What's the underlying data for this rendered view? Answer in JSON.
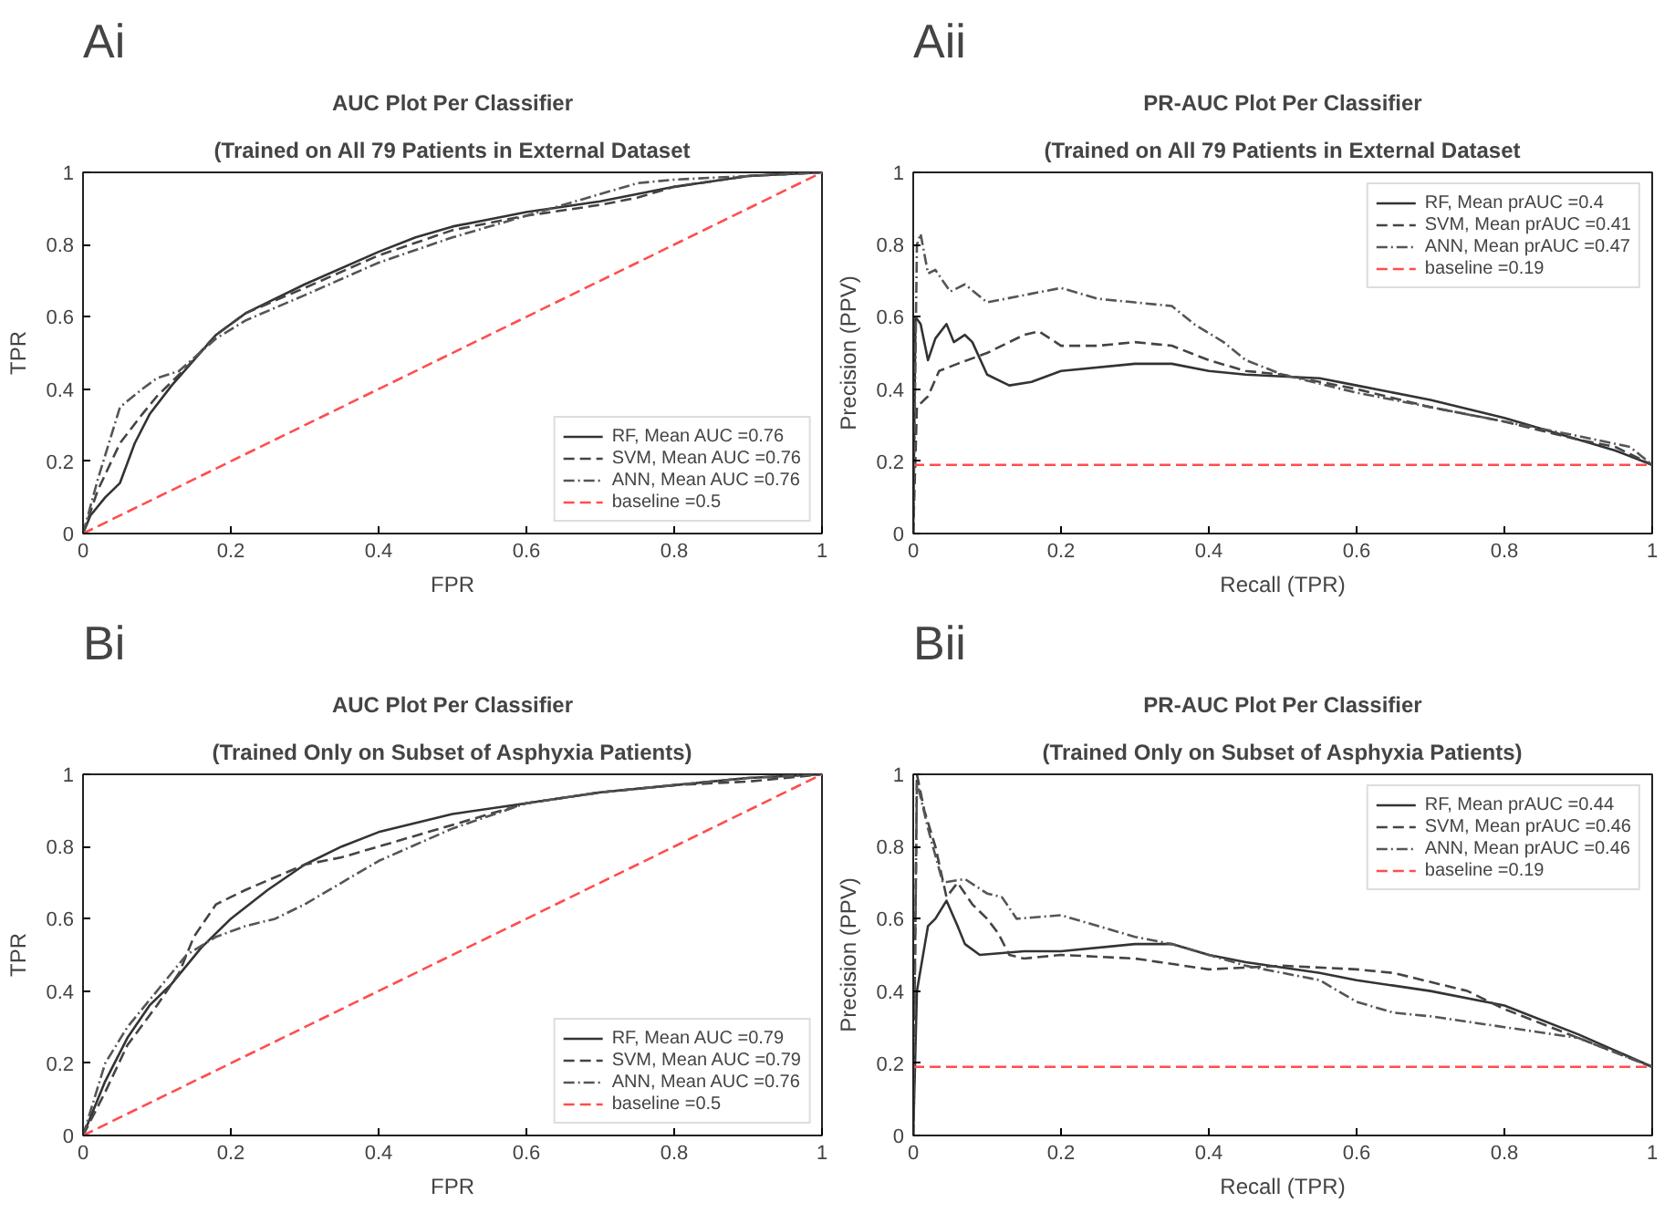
{
  "chart_data": [
    {
      "type": "line",
      "title": "AUC Plot Per Classifier",
      "subtitle": "(Trained on All 79 Patients in External Dataset",
      "xlabel": "FPR",
      "ylabel": "TPR",
      "annotations": [
        "Ai"
      ],
      "xlim": [
        0,
        1
      ],
      "ylim": [
        0,
        1
      ],
      "xticks": [
        0,
        0.2,
        0.4,
        0.6,
        0.8,
        1
      ],
      "yticks": [
        0,
        0.2,
        0.4,
        0.6,
        0.8,
        1
      ],
      "legend": "bottom right",
      "series": [
        {
          "name": "RF, Mean AUC =0.76",
          "color": "#333333",
          "line_style": "solid",
          "x": [
            0,
            0.01,
            0.03,
            0.05,
            0.07,
            0.09,
            0.12,
            0.15,
            0.18,
            0.22,
            0.3,
            0.4,
            0.45,
            0.5,
            0.55,
            0.6,
            0.7,
            0.8,
            0.9,
            1
          ],
          "values": [
            0,
            0.05,
            0.1,
            0.14,
            0.25,
            0.33,
            0.41,
            0.48,
            0.55,
            0.61,
            0.69,
            0.78,
            0.82,
            0.85,
            0.87,
            0.89,
            0.92,
            0.96,
            0.99,
            1
          ]
        },
        {
          "name": "SVM, Mean AUC =0.76",
          "color": "#444444",
          "line_style": "dashed",
          "x": [
            0,
            0.02,
            0.05,
            0.08,
            0.1,
            0.14,
            0.18,
            0.22,
            0.3,
            0.4,
            0.5,
            0.6,
            0.7,
            0.75,
            0.8,
            0.9,
            1
          ],
          "values": [
            0,
            0.12,
            0.25,
            0.33,
            0.38,
            0.46,
            0.55,
            0.61,
            0.68,
            0.77,
            0.84,
            0.88,
            0.91,
            0.93,
            0.96,
            0.99,
            1
          ]
        },
        {
          "name": "ANN, Mean AUC =0.76",
          "color": "#555555",
          "line_style": "dashdot",
          "x": [
            0,
            0.02,
            0.05,
            0.08,
            0.1,
            0.13,
            0.18,
            0.22,
            0.3,
            0.4,
            0.5,
            0.6,
            0.7,
            0.75,
            0.8,
            0.9,
            1
          ],
          "values": [
            0,
            0.15,
            0.35,
            0.4,
            0.43,
            0.45,
            0.54,
            0.59,
            0.66,
            0.75,
            0.82,
            0.88,
            0.94,
            0.97,
            0.98,
            0.99,
            1
          ]
        },
        {
          "name": "baseline =0.5",
          "color": "#ff4d4d",
          "line_style": "dashed",
          "x": [
            0,
            1
          ],
          "values": [
            0,
            1
          ]
        }
      ]
    },
    {
      "type": "line",
      "title": "PR-AUC Plot Per Classifier",
      "subtitle": "(Trained on All 79 Patients in External Dataset",
      "xlabel": "Recall (TPR)",
      "ylabel": "Precision (PPV)",
      "annotations": [
        "Aii"
      ],
      "xlim": [
        0,
        1
      ],
      "ylim": [
        0,
        1
      ],
      "xticks": [
        0,
        0.2,
        0.4,
        0.6,
        0.8,
        1
      ],
      "yticks": [
        0,
        0.2,
        0.4,
        0.6,
        0.8,
        1
      ],
      "legend": "top right",
      "series": [
        {
          "name": "RF, Mean prAUC =0.4",
          "color": "#333333",
          "line_style": "solid",
          "x": [
            0,
            0.003,
            0.01,
            0.02,
            0.03,
            0.045,
            0.055,
            0.07,
            0.08,
            0.1,
            0.13,
            0.16,
            0.2,
            0.3,
            0.35,
            0.4,
            0.45,
            0.55,
            0.6,
            0.7,
            0.8,
            0.9,
            0.95,
            1
          ],
          "values": [
            0,
            0.6,
            0.58,
            0.48,
            0.54,
            0.58,
            0.53,
            0.55,
            0.53,
            0.44,
            0.41,
            0.42,
            0.45,
            0.47,
            0.47,
            0.45,
            0.44,
            0.43,
            0.41,
            0.37,
            0.32,
            0.26,
            0.23,
            0.19
          ]
        },
        {
          "name": "SVM, Mean prAUC =0.41",
          "color": "#444444",
          "line_style": "dashed",
          "x": [
            0,
            0.005,
            0.02,
            0.035,
            0.06,
            0.1,
            0.15,
            0.17,
            0.2,
            0.25,
            0.3,
            0.35,
            0.4,
            0.45,
            0.5,
            0.6,
            0.7,
            0.8,
            0.9,
            0.95,
            1
          ],
          "values": [
            0,
            0.35,
            0.38,
            0.45,
            0.47,
            0.5,
            0.55,
            0.56,
            0.52,
            0.52,
            0.53,
            0.52,
            0.48,
            0.45,
            0.44,
            0.4,
            0.35,
            0.31,
            0.26,
            0.24,
            0.19
          ]
        },
        {
          "name": "ANN, Mean prAUC =0.47",
          "color": "#555555",
          "line_style": "dashdot",
          "x": [
            0,
            0.005,
            0.01,
            0.02,
            0.03,
            0.05,
            0.07,
            0.1,
            0.15,
            0.2,
            0.25,
            0.3,
            0.35,
            0.38,
            0.42,
            0.45,
            0.5,
            0.6,
            0.7,
            0.8,
            0.9,
            0.97,
            1
          ],
          "values": [
            0,
            0.8,
            0.83,
            0.72,
            0.73,
            0.67,
            0.69,
            0.64,
            0.66,
            0.68,
            0.65,
            0.64,
            0.63,
            0.58,
            0.53,
            0.48,
            0.44,
            0.39,
            0.35,
            0.31,
            0.27,
            0.24,
            0.19
          ]
        },
        {
          "name": "baseline =0.19",
          "color": "#ff4d4d",
          "line_style": "dashed",
          "x": [
            0,
            1
          ],
          "values": [
            0.19,
            0.19
          ]
        }
      ]
    },
    {
      "type": "line",
      "title": "AUC Plot Per Classifier",
      "subtitle": "(Trained Only on Subset of Asphyxia Patients)",
      "xlabel": "FPR",
      "ylabel": "TPR",
      "annotations": [
        "Bi"
      ],
      "xlim": [
        0,
        1
      ],
      "ylim": [
        0,
        1
      ],
      "xticks": [
        0,
        0.2,
        0.4,
        0.6,
        0.8,
        1
      ],
      "yticks": [
        0,
        0.2,
        0.4,
        0.6,
        0.8,
        1
      ],
      "legend": "bottom right",
      "series": [
        {
          "name": "RF, Mean AUC =0.79",
          "color": "#333333",
          "line_style": "solid",
          "x": [
            0,
            0.03,
            0.06,
            0.09,
            0.12,
            0.16,
            0.2,
            0.25,
            0.3,
            0.35,
            0.4,
            0.5,
            0.6,
            0.7,
            0.8,
            0.9,
            1
          ],
          "values": [
            0,
            0.15,
            0.27,
            0.36,
            0.42,
            0.52,
            0.6,
            0.68,
            0.75,
            0.8,
            0.84,
            0.89,
            0.92,
            0.95,
            0.97,
            0.99,
            1
          ]
        },
        {
          "name": "SVM, Mean AUC =0.79",
          "color": "#444444",
          "line_style": "dashed",
          "x": [
            0,
            0.03,
            0.06,
            0.1,
            0.13,
            0.15,
            0.18,
            0.22,
            0.3,
            0.35,
            0.4,
            0.5,
            0.6,
            0.7,
            0.8,
            0.9,
            1
          ],
          "values": [
            0,
            0.12,
            0.25,
            0.36,
            0.45,
            0.55,
            0.64,
            0.68,
            0.75,
            0.77,
            0.8,
            0.86,
            0.92,
            0.95,
            0.97,
            0.98,
            1
          ]
        },
        {
          "name": "ANN, Mean AUC =0.76",
          "color": "#555555",
          "line_style": "dashdot",
          "x": [
            0,
            0.03,
            0.06,
            0.1,
            0.14,
            0.18,
            0.22,
            0.26,
            0.3,
            0.35,
            0.4,
            0.5,
            0.6,
            0.7,
            0.8,
            0.9,
            1
          ],
          "values": [
            0,
            0.2,
            0.3,
            0.4,
            0.5,
            0.55,
            0.58,
            0.6,
            0.64,
            0.7,
            0.76,
            0.85,
            0.92,
            0.95,
            0.97,
            0.99,
            1
          ]
        },
        {
          "name": "baseline =0.5",
          "color": "#ff4d4d",
          "line_style": "dashed",
          "x": [
            0,
            1
          ],
          "values": [
            0,
            1
          ]
        }
      ]
    },
    {
      "type": "line",
      "title": "PR-AUC Plot Per Classifier",
      "subtitle": "(Trained Only on Subset of Asphyxia Patients)",
      "xlabel": "Recall (TPR)",
      "ylabel": "Precision (PPV)",
      "annotations": [
        "Bii"
      ],
      "xlim": [
        0,
        1
      ],
      "ylim": [
        0,
        1
      ],
      "xticks": [
        0,
        0.2,
        0.4,
        0.6,
        0.8,
        1
      ],
      "yticks": [
        0,
        0.2,
        0.4,
        0.6,
        0.8,
        1
      ],
      "legend": "top right",
      "series": [
        {
          "name": "RF, Mean prAUC =0.44",
          "color": "#333333",
          "line_style": "solid",
          "x": [
            0,
            0.005,
            0.02,
            0.03,
            0.045,
            0.06,
            0.07,
            0.09,
            0.15,
            0.2,
            0.3,
            0.35,
            0.4,
            0.45,
            0.55,
            0.6,
            0.7,
            0.8,
            0.9,
            1
          ],
          "values": [
            0,
            0.4,
            0.58,
            0.6,
            0.65,
            0.58,
            0.53,
            0.5,
            0.51,
            0.51,
            0.53,
            0.53,
            0.5,
            0.48,
            0.45,
            0.43,
            0.4,
            0.36,
            0.28,
            0.19
          ]
        },
        {
          "name": "SVM, Mean prAUC =0.46",
          "color": "#444444",
          "line_style": "dashed",
          "x": [
            0,
            0.005,
            0.015,
            0.03,
            0.045,
            0.06,
            0.08,
            0.1,
            0.115,
            0.13,
            0.15,
            0.2,
            0.3,
            0.4,
            0.5,
            0.6,
            0.65,
            0.75,
            0.8,
            0.9,
            1
          ],
          "values": [
            0,
            1,
            0.9,
            0.8,
            0.66,
            0.7,
            0.64,
            0.6,
            0.56,
            0.5,
            0.49,
            0.5,
            0.49,
            0.46,
            0.47,
            0.46,
            0.45,
            0.4,
            0.35,
            0.27,
            0.19
          ]
        },
        {
          "name": "ANN, Mean prAUC =0.46",
          "color": "#555555",
          "line_style": "dashdot",
          "x": [
            0,
            0.005,
            0.02,
            0.04,
            0.07,
            0.1,
            0.12,
            0.14,
            0.2,
            0.3,
            0.35,
            0.4,
            0.45,
            0.55,
            0.6,
            0.65,
            0.7,
            0.8,
            0.9,
            1
          ],
          "values": [
            0,
            0.98,
            0.85,
            0.7,
            0.71,
            0.67,
            0.66,
            0.6,
            0.61,
            0.55,
            0.53,
            0.5,
            0.47,
            0.43,
            0.37,
            0.34,
            0.33,
            0.3,
            0.27,
            0.19
          ]
        },
        {
          "name": "baseline =0.19",
          "color": "#ff4d4d",
          "line_style": "dashed",
          "x": [
            0,
            1
          ],
          "values": [
            0.19,
            0.19
          ]
        }
      ]
    }
  ]
}
